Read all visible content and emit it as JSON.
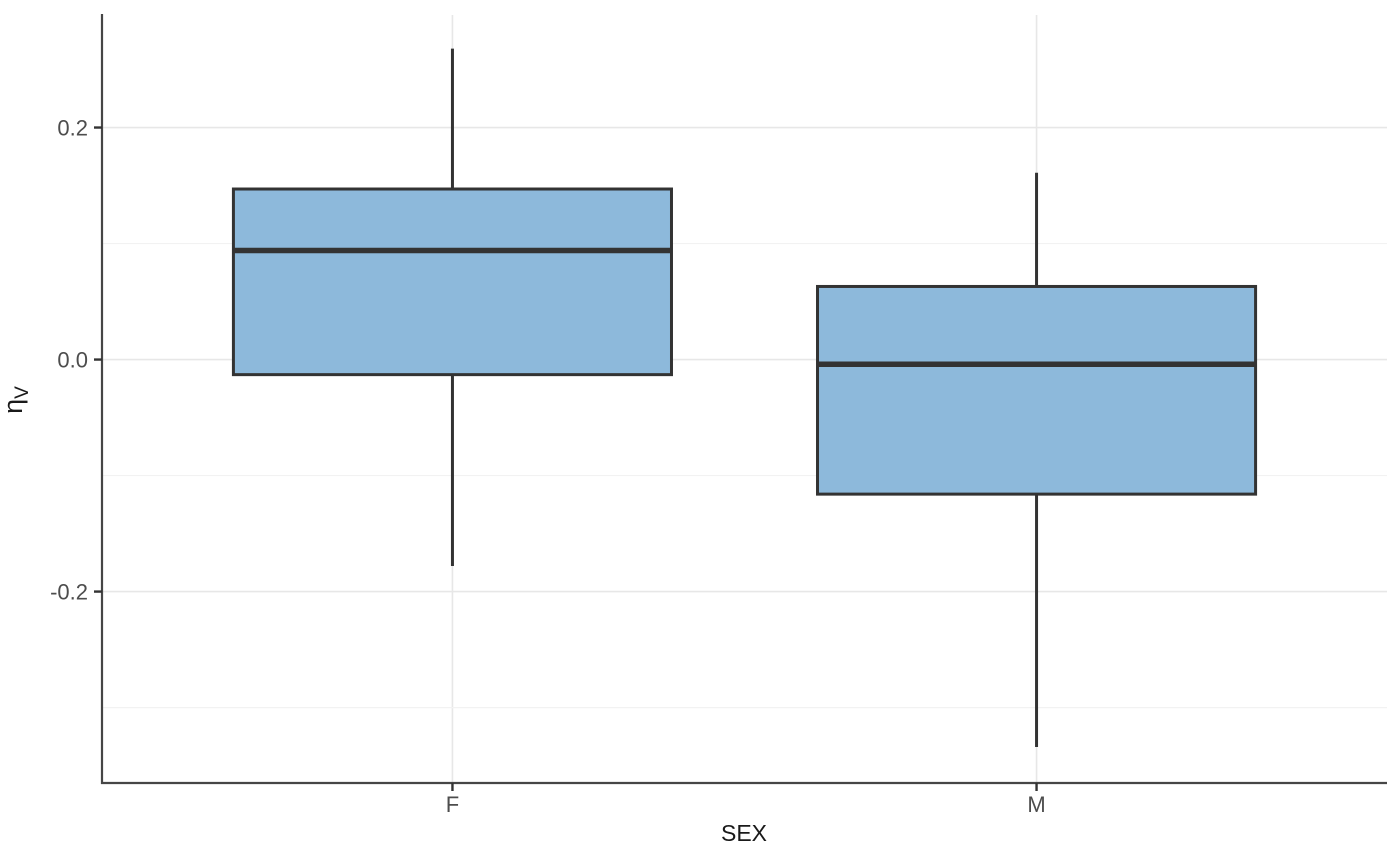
{
  "chart_data": {
    "type": "boxplot",
    "title": "",
    "xlabel": "SEX",
    "ylabel_base": "η",
    "ylabel_sub": "V",
    "categories": [
      "F",
      "M"
    ],
    "series": [
      {
        "category": "F",
        "whisker_low": -0.178,
        "q1": -0.013,
        "median": 0.094,
        "q3": 0.147,
        "whisker_high": 0.268,
        "outliers": []
      },
      {
        "category": "M",
        "whisker_low": -0.334,
        "q1": -0.116,
        "median": -0.004,
        "q3": 0.063,
        "whisker_high": 0.161,
        "outliers": []
      }
    ],
    "y_ticks": [
      {
        "value": 0.2,
        "label": "0.2"
      },
      {
        "value": 0.0,
        "label": "0.0"
      },
      {
        "value": -0.2,
        "label": "-0.2"
      }
    ],
    "y_minor_ticks": [
      0.1,
      -0.1,
      -0.3
    ],
    "ylim": [
      -0.365,
      0.297
    ],
    "grid": "horizontal major and minor lines; vertical line at each category center",
    "legend": "none",
    "colors": {
      "box_fill": "#8DB9DB",
      "box_border": "#333333",
      "median": "#333333",
      "whisker": "#333333",
      "grid_major": "#E7E7E7",
      "grid_minor": "#F2F2F2",
      "axis_line": "#464646",
      "tick_mark": "#333333",
      "tick_label": "#4D4D4D",
      "axis_title": "#1A1A1A",
      "background": "#FFFFFF"
    }
  }
}
